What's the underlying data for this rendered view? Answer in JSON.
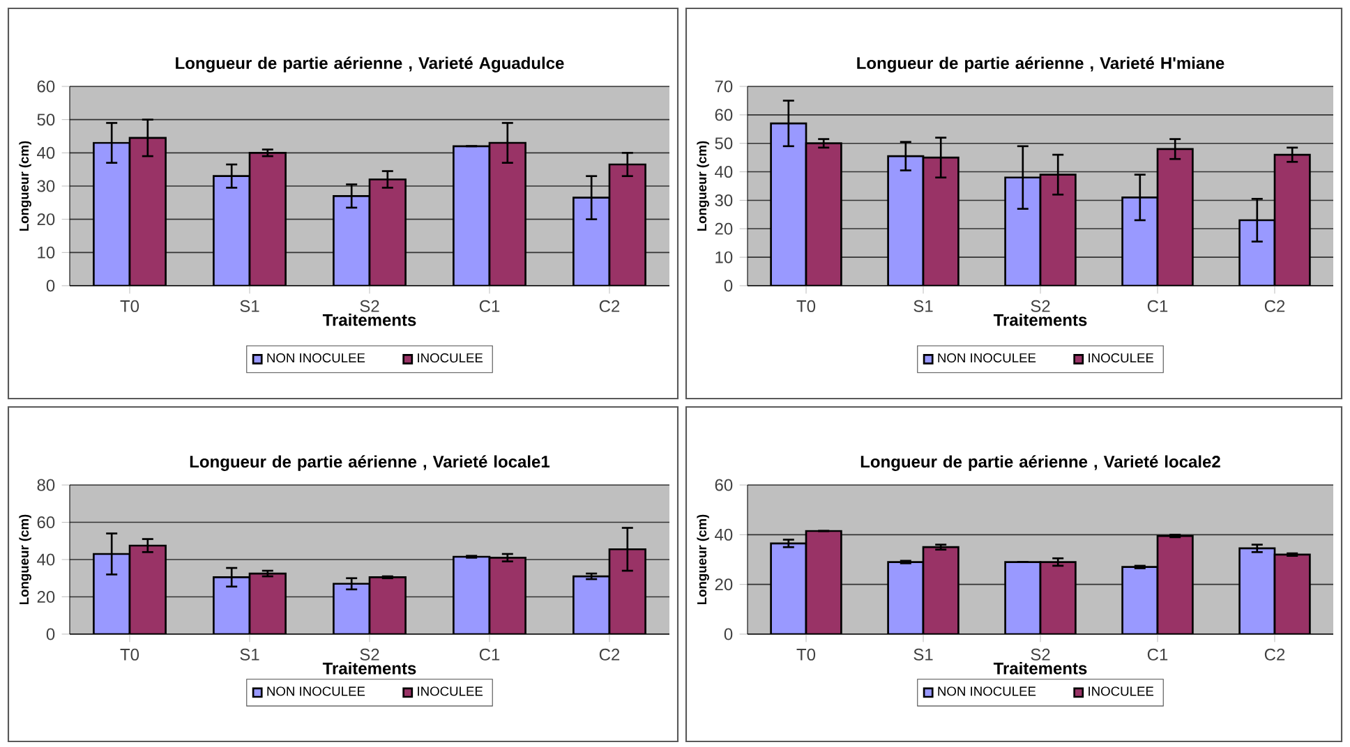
{
  "chart_data": [
    {
      "type": "bar",
      "title": "Longueur de partie aérienne , Varieté Aguadulce",
      "xlabel": "Traitements",
      "ylabel": "Longueur (cm)",
      "categories": [
        "T0",
        "S1",
        "S2",
        "C1",
        "C2"
      ],
      "series": [
        {
          "name": "NON INOCULEE",
          "color": "#9999ff",
          "values": [
            43,
            33,
            27,
            42,
            26.5
          ],
          "errors": [
            6,
            3.5,
            3.5,
            null,
            6.5
          ]
        },
        {
          "name": "INOCULEE",
          "color": "#993366",
          "values": [
            44.5,
            40,
            32,
            43,
            36.5
          ],
          "errors": [
            5.5,
            1,
            2.5,
            6,
            3.5
          ]
        }
      ],
      "ylim": [
        0,
        60
      ],
      "yticks": [
        0,
        10,
        20,
        30,
        40,
        50,
        60
      ],
      "grid": "y",
      "legend": "bottom"
    },
    {
      "type": "bar",
      "title": "Longueur de partie aérienne , Varieté H'miane",
      "xlabel": "Traitements",
      "ylabel": "Longueur (cm)",
      "categories": [
        "T0",
        "S1",
        "S2",
        "C1",
        "C2"
      ],
      "series": [
        {
          "name": "NON INOCULEE",
          "color": "#9999ff",
          "values": [
            57,
            45.5,
            38,
            31,
            23
          ],
          "errors": [
            8,
            5,
            11,
            8,
            7.5
          ]
        },
        {
          "name": "INOCULEE",
          "color": "#993366",
          "values": [
            50,
            45,
            39,
            48,
            46
          ],
          "errors": [
            1.5,
            7,
            7,
            3.5,
            2.5
          ]
        }
      ],
      "ylim": [
        0,
        70
      ],
      "yticks": [
        0,
        10,
        20,
        30,
        40,
        50,
        60,
        70
      ],
      "grid": "y",
      "legend": "bottom"
    },
    {
      "type": "bar",
      "title": "Longueur de partie aérienne , Varieté locale1",
      "xlabel": "Traitements",
      "ylabel": "Longueur (cm)",
      "categories": [
        "T0",
        "S1",
        "S2",
        "C1",
        "C2"
      ],
      "series": [
        {
          "name": "NON INOCULEE",
          "color": "#9999ff",
          "values": [
            43,
            30.5,
            27,
            41.5,
            31
          ],
          "errors": [
            11,
            5,
            3,
            0.5,
            1.5
          ]
        },
        {
          "name": "INOCULEE",
          "color": "#993366",
          "values": [
            47.5,
            32.5,
            30.5,
            41,
            45.5
          ],
          "errors": [
            3.5,
            1.5,
            0.5,
            2,
            11.5
          ]
        }
      ],
      "ylim": [
        0,
        80
      ],
      "yticks": [
        0,
        20,
        40,
        60,
        80
      ],
      "grid": "y",
      "legend": "bottom"
    },
    {
      "type": "bar",
      "title": "Longueur de partie aérienne , Varieté locale2",
      "xlabel": "Traitements",
      "ylabel": "Longueur (cm)",
      "categories": [
        "T0",
        "S1",
        "S2",
        "C1",
        "C2"
      ],
      "series": [
        {
          "name": "NON INOCULEE",
          "color": "#9999ff",
          "values": [
            36.5,
            29,
            29,
            27,
            34.5
          ],
          "errors": [
            1.5,
            0.5,
            null,
            0.5,
            1.5
          ]
        },
        {
          "name": "INOCULEE",
          "color": "#993366",
          "values": [
            41.5,
            35,
            29,
            39.5,
            32
          ],
          "errors": [
            null,
            1,
            1.5,
            0.5,
            0.5
          ]
        }
      ],
      "ylim": [
        0,
        60
      ],
      "yticks": [
        0,
        20,
        40,
        60
      ],
      "grid": "y",
      "legend": "bottom"
    }
  ]
}
